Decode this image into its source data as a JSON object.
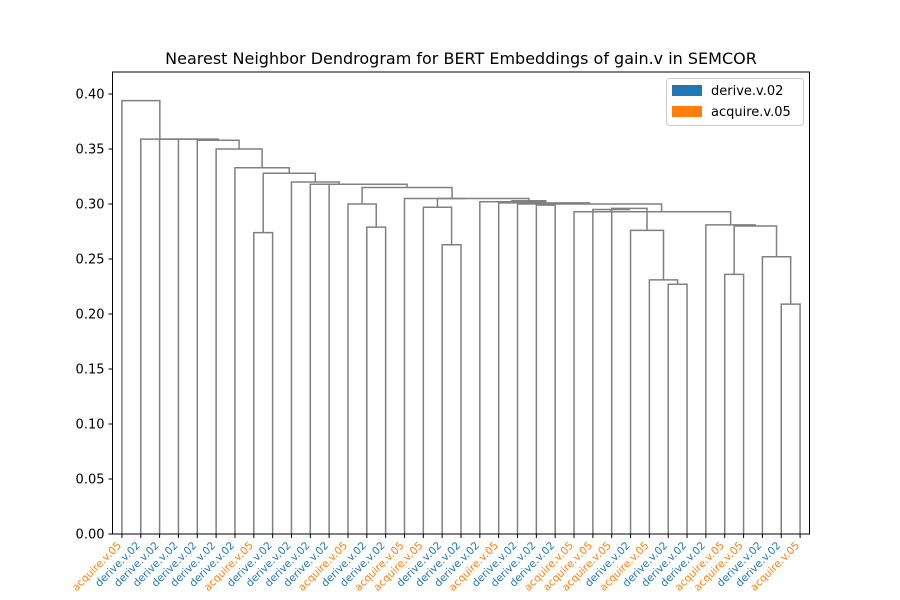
{
  "chart_data": {
    "type": "dendrogram",
    "title": "Nearest Neighbor Dendrogram for BERT Embeddings of gain.v in SEMCOR",
    "xlabel": "",
    "ylabel": "",
    "ylim": [
      0,
      0.42
    ],
    "yticks": [
      0.0,
      0.05,
      0.1,
      0.15,
      0.2,
      0.25,
      0.3,
      0.35,
      0.4
    ],
    "ytick_labels": [
      "0.00",
      "0.05",
      "0.10",
      "0.15",
      "0.20",
      "0.25",
      "0.30",
      "0.35",
      "0.40"
    ],
    "legend": {
      "placement": "top-right",
      "entries": [
        {
          "label": "derive.v.02",
          "color": "#1f77b4"
        },
        {
          "label": "acquire.v.05",
          "color": "#ff7f0e"
        }
      ]
    },
    "link_color": "#808080",
    "leaves": [
      {
        "label": "acquire.v.05",
        "color": "#ff7f0e"
      },
      {
        "label": "derive.v.02",
        "color": "#1f77b4"
      },
      {
        "label": "derive.v.02",
        "color": "#1f77b4"
      },
      {
        "label": "derive.v.02",
        "color": "#1f77b4"
      },
      {
        "label": "derive.v.02",
        "color": "#1f77b4"
      },
      {
        "label": "derive.v.02",
        "color": "#1f77b4"
      },
      {
        "label": "derive.v.02",
        "color": "#1f77b4"
      },
      {
        "label": "acquire.v.05",
        "color": "#ff7f0e"
      },
      {
        "label": "derive.v.02",
        "color": "#1f77b4"
      },
      {
        "label": "derive.v.02",
        "color": "#1f77b4"
      },
      {
        "label": "derive.v.02",
        "color": "#1f77b4"
      },
      {
        "label": "derive.v.02",
        "color": "#1f77b4"
      },
      {
        "label": "acquire.v.05",
        "color": "#ff7f0e"
      },
      {
        "label": "derive.v.02",
        "color": "#1f77b4"
      },
      {
        "label": "derive.v.02",
        "color": "#1f77b4"
      },
      {
        "label": "acquire.v.05",
        "color": "#ff7f0e"
      },
      {
        "label": "acquire.v.05",
        "color": "#ff7f0e"
      },
      {
        "label": "derive.v.02",
        "color": "#1f77b4"
      },
      {
        "label": "derive.v.02",
        "color": "#1f77b4"
      },
      {
        "label": "derive.v.02",
        "color": "#1f77b4"
      },
      {
        "label": "acquire.v.05",
        "color": "#ff7f0e"
      },
      {
        "label": "derive.v.02",
        "color": "#1f77b4"
      },
      {
        "label": "derive.v.02",
        "color": "#1f77b4"
      },
      {
        "label": "derive.v.02",
        "color": "#1f77b4"
      },
      {
        "label": "acquire.v.05",
        "color": "#ff7f0e"
      },
      {
        "label": "acquire.v.05",
        "color": "#ff7f0e"
      },
      {
        "label": "acquire.v.05",
        "color": "#ff7f0e"
      },
      {
        "label": "derive.v.02",
        "color": "#1f77b4"
      },
      {
        "label": "acquire.v.05",
        "color": "#ff7f0e"
      },
      {
        "label": "derive.v.02",
        "color": "#1f77b4"
      },
      {
        "label": "derive.v.02",
        "color": "#1f77b4"
      },
      {
        "label": "derive.v.02",
        "color": "#1f77b4"
      },
      {
        "label": "acquire.v.05",
        "color": "#ff7f0e"
      },
      {
        "label": "acquire.v.05",
        "color": "#ff7f0e"
      },
      {
        "label": "derive.v.02",
        "color": "#1f77b4"
      },
      {
        "label": "derive.v.02",
        "color": "#1f77b4"
      },
      {
        "label": "acquire.v.05",
        "color": "#ff7f0e"
      }
    ],
    "merges": [
      {
        "a": 7,
        "b": 8,
        "height": 0.274
      },
      {
        "a": 13,
        "b": 14,
        "height": 0.279
      },
      {
        "a": 17,
        "b": 18,
        "height": 0.263
      },
      {
        "a": 22,
        "b": 23,
        "height": 0.299
      },
      {
        "a": 29,
        "b": 30,
        "height": 0.227
      },
      {
        "a": 32,
        "b": 33,
        "height": 0.236
      },
      {
        "a": 35,
        "b": 36,
        "height": 0.209
      },
      {
        "a": 12,
        "b": -2,
        "height": 0.3
      },
      {
        "a": 16,
        "b": -3,
        "height": 0.297
      },
      {
        "a": 28,
        "b": -5,
        "height": 0.231
      },
      {
        "a": 34,
        "b": -7,
        "height": 0.252
      },
      {
        "a": 27,
        "b": -10,
        "height": 0.276
      },
      {
        "a": -6,
        "b": -11,
        "height": 0.28
      },
      {
        "a": 31,
        "b": -13,
        "height": 0.281
      },
      {
        "a": 26,
        "b": -12,
        "height": 0.296
      },
      {
        "a": 25,
        "b": -15,
        "height": 0.295
      },
      {
        "a": 24,
        "b": -16,
        "height": 0.293
      },
      {
        "a": -17,
        "b": -14,
        "height": 0.293
      },
      {
        "a": 21,
        "b": -18,
        "height": 0.3
      },
      {
        "a": 20,
        "b": -19,
        "height": 0.301
      },
      {
        "a": 19,
        "b": -20,
        "height": 0.302
      },
      {
        "a": -4,
        "b": -21,
        "height": 0.303
      },
      {
        "a": 15,
        "b": -22,
        "height": 0.305
      },
      {
        "a": -9,
        "b": -23,
        "height": 0.305
      },
      {
        "a": -8,
        "b": -24,
        "height": 0.315
      },
      {
        "a": 11,
        "b": -25,
        "height": 0.318
      },
      {
        "a": 10,
        "b": -26,
        "height": 0.318
      },
      {
        "a": 9,
        "b": -27,
        "height": 0.32
      },
      {
        "a": -1,
        "b": -28,
        "height": 0.328
      },
      {
        "a": 6,
        "b": -29,
        "height": 0.333
      },
      {
        "a": 5,
        "b": -30,
        "height": 0.35
      },
      {
        "a": 4,
        "b": -31,
        "height": 0.358
      },
      {
        "a": 3,
        "b": -32,
        "height": 0.359
      },
      {
        "a": 2,
        "b": -33,
        "height": 0.359
      },
      {
        "a": 1,
        "b": -34,
        "height": 0.359
      },
      {
        "a": 0,
        "b": -35,
        "height": 0.394
      }
    ]
  }
}
